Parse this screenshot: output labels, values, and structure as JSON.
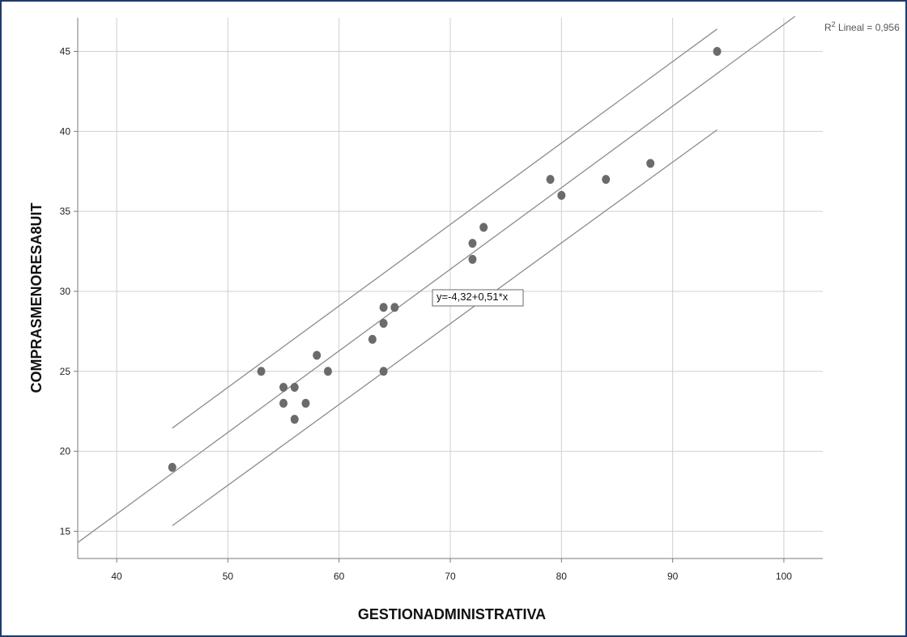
{
  "chart_data": {
    "type": "scatter",
    "xlabel": "GESTIONADMINISTRATIVA",
    "ylabel": "COMPRASMENORESA8UIT",
    "xlim": [
      36.5,
      103.5
    ],
    "ylim": [
      13.3,
      47.1
    ],
    "x_ticks": [
      40,
      50,
      60,
      70,
      80,
      90,
      100
    ],
    "y_ticks": [
      15,
      20,
      25,
      30,
      35,
      40,
      45
    ],
    "grid": true,
    "points": [
      {
        "x": 45,
        "y": 19
      },
      {
        "x": 53,
        "y": 25
      },
      {
        "x": 55,
        "y": 24
      },
      {
        "x": 55,
        "y": 23
      },
      {
        "x": 56,
        "y": 24
      },
      {
        "x": 56,
        "y": 22
      },
      {
        "x": 57,
        "y": 23
      },
      {
        "x": 58,
        "y": 26
      },
      {
        "x": 59,
        "y": 25
      },
      {
        "x": 63,
        "y": 27
      },
      {
        "x": 64,
        "y": 29
      },
      {
        "x": 64,
        "y": 28
      },
      {
        "x": 64,
        "y": 25
      },
      {
        "x": 65,
        "y": 29
      },
      {
        "x": 72,
        "y": 33
      },
      {
        "x": 72,
        "y": 32
      },
      {
        "x": 73,
        "y": 34
      },
      {
        "x": 79,
        "y": 37
      },
      {
        "x": 80,
        "y": 36
      },
      {
        "x": 84,
        "y": 37
      },
      {
        "x": 88,
        "y": 38
      },
      {
        "x": 94,
        "y": 45
      }
    ],
    "fit_line": {
      "intercept": -4.32,
      "slope": 0.51,
      "x_range": [
        36.5,
        101
      ]
    },
    "interval_lines": [
      {
        "name": "upper",
        "x_range": [
          45,
          94
        ],
        "y_range": [
          21.45,
          46.4
        ]
      },
      {
        "name": "lower",
        "x_range": [
          45,
          94
        ],
        "y_range": [
          15.35,
          40.1
        ]
      }
    ],
    "equation_label": "y=-4,32+0,51*x",
    "equation_anchor": {
      "x": 68.4,
      "y": 30.1
    },
    "r2_label_prefix": "R",
    "r2_label_sup": "2",
    "r2_label_suffix": " Lineal = 0,956",
    "colors": {
      "point": "#6b6b6b",
      "line": "#8c8c8c",
      "grid": "#cfcfcf",
      "axis": "#7a7a7a",
      "frame": "#1f3a6e"
    }
  }
}
